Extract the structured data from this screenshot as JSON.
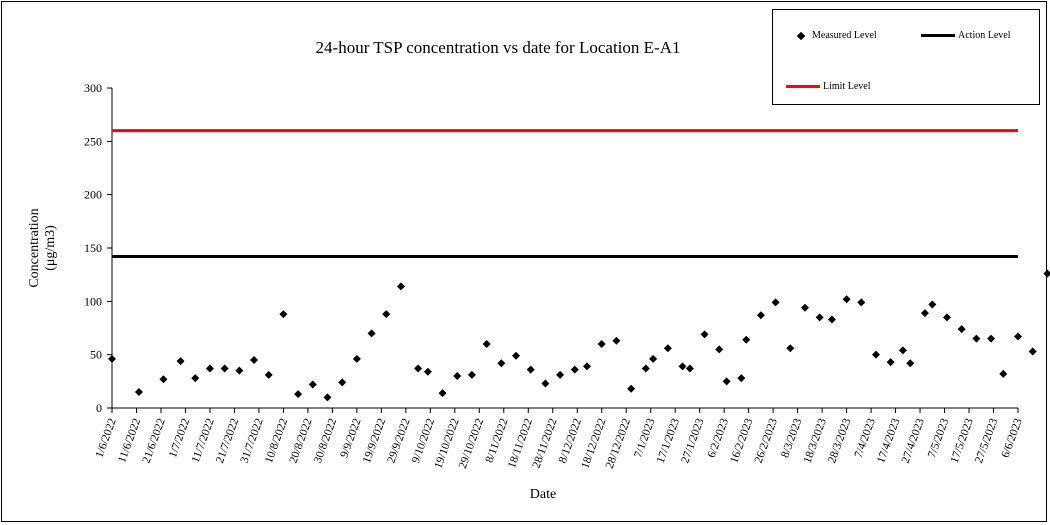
{
  "chart_data": {
    "type": "scatter",
    "title": "24-hour TSP concentration vs date for Location E-A1",
    "xlabel": "Date",
    "ylabel": "Concentration",
    "ylabel_unit": "(μg/m3)",
    "ylim": [
      0,
      300
    ],
    "yticks": [
      0,
      50,
      100,
      150,
      200,
      250,
      300
    ],
    "xlim": [
      "2022-06-01",
      "2023-06-06"
    ],
    "xtick_labels": [
      "1/6/2022",
      "11/6/2022",
      "21/6/2022",
      "1/7/2022",
      "11/7/2022",
      "21/7/2022",
      "31/7/2022",
      "10/8/2022",
      "20/8/2022",
      "30/8/2022",
      "9/9/2022",
      "19/9/2022",
      "29/9/2022",
      "9/10/2022",
      "19/10/2022",
      "29/10/2022",
      "8/11/2022",
      "18/11/2022",
      "28/11/2022",
      "8/12/2022",
      "18/12/2022",
      "28/12/2022",
      "7/1/2023",
      "17/1/2023",
      "27/1/2023",
      "6/2/2023",
      "16/2/2023",
      "26/2/2023",
      "8/3/2023",
      "18/3/2023",
      "28/3/2023",
      "7/4/2023",
      "17/4/2023",
      "27/4/2023",
      "7/5/2023",
      "17/5/2023",
      "27/5/2023",
      "6/6/2023"
    ],
    "grid": false,
    "legend_position": "top-right",
    "series": [
      {
        "name": "Measured Level",
        "marker": "diamond",
        "color": "#000000",
        "points": [
          {
            "x": "2022-06-01",
            "y": 46
          },
          {
            "x": "2022-06-12",
            "y": 15
          },
          {
            "x": "2022-06-22",
            "y": 27
          },
          {
            "x": "2022-06-29",
            "y": 44
          },
          {
            "x": "2022-07-05",
            "y": 28
          },
          {
            "x": "2022-07-11",
            "y": 37
          },
          {
            "x": "2022-07-17",
            "y": 37
          },
          {
            "x": "2022-07-23",
            "y": 35
          },
          {
            "x": "2022-07-29",
            "y": 45
          },
          {
            "x": "2022-08-04",
            "y": 31
          },
          {
            "x": "2022-08-10",
            "y": 88
          },
          {
            "x": "2022-08-16",
            "y": 13
          },
          {
            "x": "2022-08-22",
            "y": 22
          },
          {
            "x": "2022-08-28",
            "y": 10
          },
          {
            "x": "2022-09-03",
            "y": 24
          },
          {
            "x": "2022-09-09",
            "y": 46
          },
          {
            "x": "2022-09-15",
            "y": 70
          },
          {
            "x": "2022-09-21",
            "y": 88
          },
          {
            "x": "2022-09-27",
            "y": 114
          },
          {
            "x": "2022-10-04",
            "y": 37
          },
          {
            "x": "2022-10-08",
            "y": 34
          },
          {
            "x": "2022-10-14",
            "y": 14
          },
          {
            "x": "2022-10-20",
            "y": 30
          },
          {
            "x": "2022-10-26",
            "y": 31
          },
          {
            "x": "2022-11-01",
            "y": 60
          },
          {
            "x": "2022-11-07",
            "y": 42
          },
          {
            "x": "2022-11-13",
            "y": 49
          },
          {
            "x": "2022-11-19",
            "y": 36
          },
          {
            "x": "2022-11-25",
            "y": 23
          },
          {
            "x": "2022-12-01",
            "y": 31
          },
          {
            "x": "2022-12-07",
            "y": 36
          },
          {
            "x": "2022-12-12",
            "y": 39
          },
          {
            "x": "2022-12-18",
            "y": 60
          },
          {
            "x": "2022-12-24",
            "y": 63
          },
          {
            "x": "2022-12-30",
            "y": 18
          },
          {
            "x": "2023-01-05",
            "y": 37
          },
          {
            "x": "2023-01-08",
            "y": 46
          },
          {
            "x": "2023-01-14",
            "y": 56
          },
          {
            "x": "2023-01-20",
            "y": 39
          },
          {
            "x": "2023-01-23",
            "y": 37
          },
          {
            "x": "2023-01-29",
            "y": 69
          },
          {
            "x": "2023-02-04",
            "y": 55
          },
          {
            "x": "2023-02-07",
            "y": 25
          },
          {
            "x": "2023-02-13",
            "y": 28
          },
          {
            "x": "2023-02-15",
            "y": 64
          },
          {
            "x": "2023-02-21",
            "y": 87
          },
          {
            "x": "2023-02-27",
            "y": 99
          },
          {
            "x": "2023-03-05",
            "y": 56
          },
          {
            "x": "2023-03-11",
            "y": 94
          },
          {
            "x": "2023-03-17",
            "y": 85
          },
          {
            "x": "2023-03-22",
            "y": 83
          },
          {
            "x": "2023-03-28",
            "y": 102
          },
          {
            "x": "2023-04-03",
            "y": 99
          },
          {
            "x": "2023-04-09",
            "y": 50
          },
          {
            "x": "2023-04-15",
            "y": 43
          },
          {
            "x": "2023-04-20",
            "y": 54
          },
          {
            "x": "2023-04-23",
            "y": 42
          },
          {
            "x": "2023-04-29",
            "y": 89
          },
          {
            "x": "2023-05-02",
            "y": 97
          },
          {
            "x": "2023-05-08",
            "y": 85
          },
          {
            "x": "2023-05-14",
            "y": 74
          },
          {
            "x": "2023-05-20",
            "y": 65
          },
          {
            "x": "2023-05-26",
            "y": 65
          },
          {
            "x": "2023-05-31",
            "y": 32
          },
          {
            "x": "2023-06-06",
            "y": 67
          },
          {
            "x": "2023-06-12",
            "y": 53
          },
          {
            "x": "2023-06-18",
            "y": 126
          }
        ]
      },
      {
        "name": "Action Level",
        "type": "hline",
        "value": 142,
        "color": "#000000"
      },
      {
        "name": "Limit Level",
        "type": "hline",
        "value": 260,
        "color": "#ff0000"
      }
    ]
  }
}
